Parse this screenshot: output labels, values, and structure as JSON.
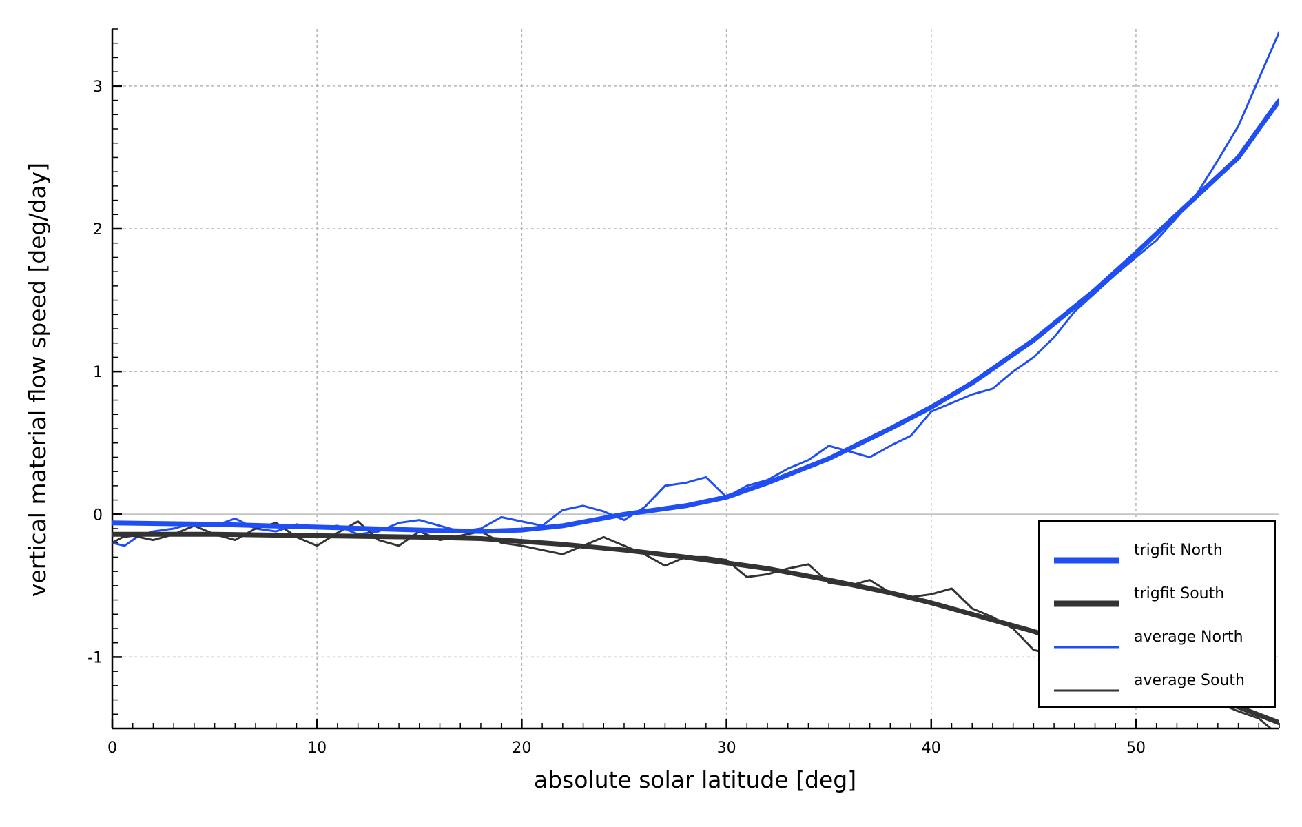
{
  "chart_data": {
    "type": "line",
    "title": "",
    "xlabel": "absolute solar latitude [deg]",
    "ylabel": "vertical material flow speed [deg/day]",
    "xlim": [
      0,
      57
    ],
    "ylim": [
      -1.5,
      3.4
    ],
    "x_ticks": [
      0,
      10,
      20,
      30,
      40,
      50
    ],
    "x_tick_labels": [
      "0",
      "10",
      "20",
      "30",
      "40",
      "50"
    ],
    "y_ticks": [
      3,
      2,
      1,
      0,
      -1
    ],
    "y_tick_labels": [
      "3",
      "2",
      "1",
      "0",
      "-1"
    ],
    "grid": true,
    "legend_position": "bottom-right",
    "series": [
      {
        "name": "trigfit North",
        "color": "#1f4ef2",
        "style": "thick",
        "x": [
          0,
          5,
          10,
          15,
          18,
          20,
          22,
          25,
          28,
          30,
          32,
          35,
          38,
          40,
          42,
          45,
          48,
          50,
          52,
          55,
          57
        ],
        "y": [
          -0.06,
          -0.07,
          -0.09,
          -0.11,
          -0.12,
          -0.11,
          -0.08,
          0.0,
          0.06,
          0.12,
          0.22,
          0.39,
          0.6,
          0.75,
          0.92,
          1.22,
          1.57,
          1.83,
          2.1,
          2.5,
          2.9
        ]
      },
      {
        "name": "trigfit South",
        "color": "#333333",
        "style": "thick",
        "x": [
          0,
          5,
          10,
          15,
          18,
          20,
          22,
          25,
          28,
          30,
          32,
          35,
          38,
          40,
          42,
          45,
          48,
          50,
          52,
          55,
          57
        ],
        "y": [
          -0.14,
          -0.14,
          -0.15,
          -0.16,
          -0.17,
          -0.19,
          -0.21,
          -0.25,
          -0.3,
          -0.34,
          -0.38,
          -0.46,
          -0.55,
          -0.62,
          -0.7,
          -0.82,
          -0.97,
          -1.07,
          -1.18,
          -1.35,
          -1.46
        ]
      },
      {
        "name": "average North",
        "color": "#1f4ef2",
        "style": "thin",
        "x": [
          0,
          0.6,
          1.2,
          2,
          3,
          4,
          5,
          6,
          7,
          8,
          9,
          10,
          11,
          12,
          13,
          14,
          15,
          16,
          17,
          18,
          19,
          20,
          21,
          22,
          23,
          24,
          25,
          26,
          27,
          28,
          29,
          30,
          31,
          32,
          33,
          34,
          35,
          36,
          37,
          38,
          39,
          40,
          41,
          42,
          43,
          44,
          45,
          46,
          47,
          48,
          49,
          50,
          51,
          52,
          53,
          54,
          55,
          56,
          57
        ],
        "y": [
          -0.2,
          -0.22,
          -0.16,
          -0.12,
          -0.1,
          -0.06,
          -0.08,
          -0.03,
          -0.1,
          -0.12,
          -0.07,
          -0.1,
          -0.08,
          -0.14,
          -0.12,
          -0.06,
          -0.04,
          -0.08,
          -0.12,
          -0.1,
          -0.02,
          -0.05,
          -0.08,
          0.03,
          0.06,
          0.02,
          -0.04,
          0.05,
          0.2,
          0.22,
          0.26,
          0.12,
          0.2,
          0.24,
          0.32,
          0.38,
          0.48,
          0.44,
          0.4,
          0.48,
          0.55,
          0.72,
          0.78,
          0.84,
          0.88,
          1.0,
          1.1,
          1.24,
          1.42,
          1.55,
          1.68,
          1.8,
          1.92,
          2.08,
          2.25,
          2.48,
          2.72,
          3.05,
          3.38
        ]
      },
      {
        "name": "average South",
        "color": "#333333",
        "style": "thin",
        "x": [
          0,
          0.5,
          1,
          2,
          3,
          4,
          5,
          6,
          7,
          8,
          9,
          10,
          11,
          12,
          13,
          14,
          15,
          16,
          17,
          18,
          19,
          20,
          21,
          22,
          23,
          24,
          25,
          26,
          27,
          28,
          29,
          30,
          31,
          32,
          33,
          34,
          35,
          36,
          37,
          38,
          39,
          40,
          41,
          42,
          43,
          44,
          45,
          46,
          47,
          48,
          49,
          50,
          51,
          52,
          53,
          54,
          55,
          56,
          57
        ],
        "y": [
          -0.2,
          -0.16,
          -0.15,
          -0.18,
          -0.14,
          -0.08,
          -0.14,
          -0.18,
          -0.1,
          -0.06,
          -0.16,
          -0.22,
          -0.13,
          -0.05,
          -0.18,
          -0.22,
          -0.12,
          -0.18,
          -0.15,
          -0.12,
          -0.2,
          -0.22,
          -0.25,
          -0.28,
          -0.22,
          -0.16,
          -0.22,
          -0.28,
          -0.36,
          -0.3,
          -0.3,
          -0.32,
          -0.44,
          -0.42,
          -0.38,
          -0.35,
          -0.48,
          -0.5,
          -0.46,
          -0.55,
          -0.58,
          -0.56,
          -0.52,
          -0.66,
          -0.72,
          -0.8,
          -0.95,
          -0.98,
          -1.02,
          -1.06,
          -1.12,
          -1.16,
          -1.14,
          -1.22,
          -1.28,
          -1.32,
          -1.38,
          -1.43,
          -1.55
        ]
      }
    ]
  }
}
